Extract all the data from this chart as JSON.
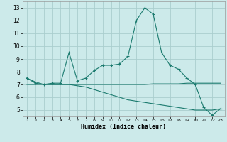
{
  "xlabel": "Humidex (Indice chaleur)",
  "x": [
    0,
    1,
    2,
    3,
    4,
    5,
    6,
    7,
    8,
    9,
    10,
    11,
    12,
    13,
    14,
    15,
    16,
    17,
    18,
    19,
    20,
    21,
    22,
    23
  ],
  "line1": [
    7.5,
    7.1,
    7.0,
    7.1,
    7.1,
    9.5,
    7.3,
    7.5,
    8.1,
    8.5,
    8.5,
    8.6,
    9.2,
    12.0,
    13.0,
    12.5,
    9.5,
    8.5,
    8.2,
    7.5,
    7.0,
    5.2,
    4.6,
    5.1
  ],
  "line2": [
    7.0,
    7.0,
    7.0,
    7.0,
    7.0,
    7.0,
    7.0,
    7.0,
    7.0,
    7.0,
    7.0,
    7.0,
    7.0,
    7.0,
    7.0,
    7.05,
    7.05,
    7.05,
    7.05,
    7.1,
    7.1,
    7.1,
    7.1,
    7.1
  ],
  "line3": [
    7.5,
    7.2,
    7.0,
    7.0,
    7.0,
    7.0,
    6.9,
    6.8,
    6.6,
    6.4,
    6.2,
    6.0,
    5.8,
    5.7,
    5.6,
    5.5,
    5.4,
    5.3,
    5.2,
    5.1,
    5.0,
    5.0,
    5.0,
    5.1
  ],
  "bg_color": "#cceaea",
  "line_color": "#1a7a6e",
  "grid_color": "#aacece",
  "xlim": [
    -0.5,
    23.5
  ],
  "ylim": [
    4.5,
    13.5
  ],
  "yticks": [
    5,
    6,
    7,
    8,
    9,
    10,
    11,
    12,
    13
  ],
  "xtick_labels": [
    "0",
    "1",
    "2",
    "3",
    "4",
    "5",
    "6",
    "7",
    "8",
    "9",
    "10",
    "11",
    "12",
    "13",
    "14",
    "15",
    "16",
    "17",
    "18",
    "19",
    "20",
    "21",
    "22",
    "23"
  ]
}
